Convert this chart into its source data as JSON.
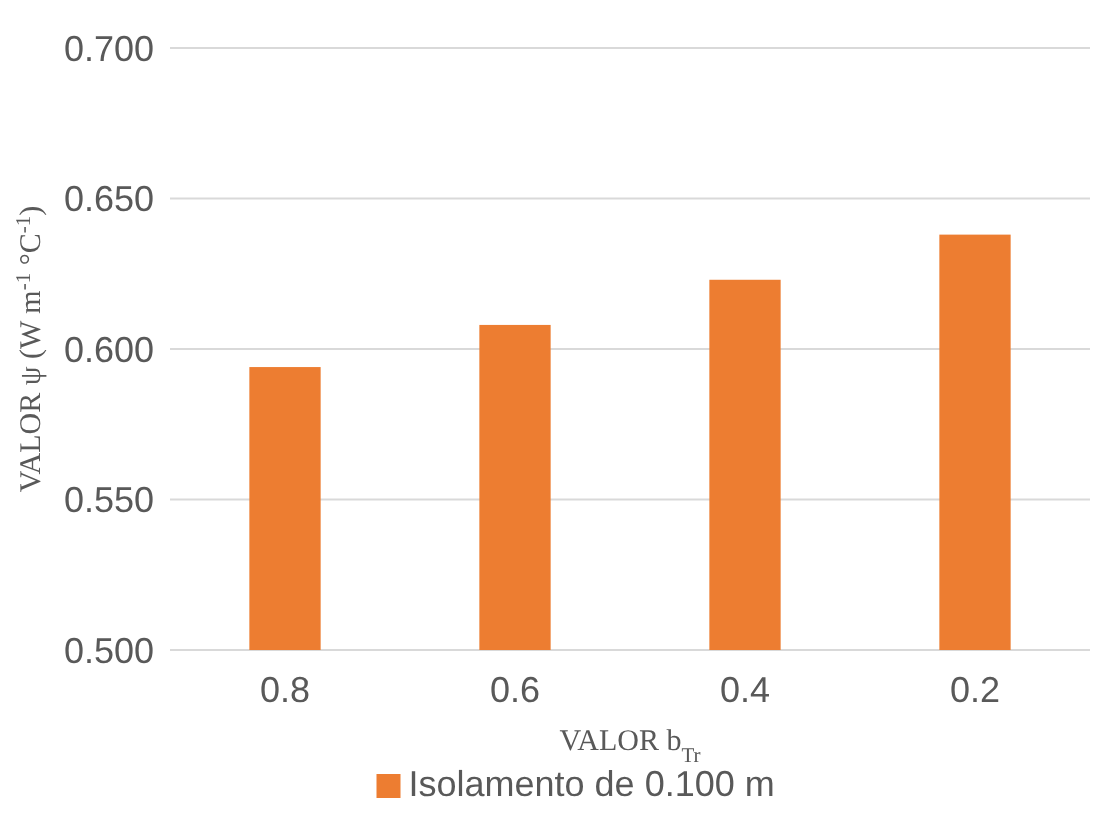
{
  "chart_data": {
    "type": "bar",
    "xlabel": "VALOR b$_{Tr}$",
    "ylabel": "VALOR ψ (W m$^{-1}$ °C$^{-1}$)",
    "categories": [
      "0.8",
      "0.6",
      "0.4",
      "0.2"
    ],
    "series": [
      {
        "name": "Isolamento de 0.100 m",
        "color": "#ed7d31",
        "values": [
          0.594,
          0.608,
          0.623,
          0.638
        ]
      }
    ],
    "ylim": [
      0.5,
      0.7
    ],
    "yticks": [
      {
        "value": 0.5,
        "label": "0.500"
      },
      {
        "value": 0.55,
        "label": "0.550"
      },
      {
        "value": 0.6,
        "label": "0.600"
      },
      {
        "value": 0.65,
        "label": "0.650"
      },
      {
        "value": 0.7,
        "label": "0.700"
      }
    ],
    "grid": "y",
    "legend": "bottom"
  }
}
